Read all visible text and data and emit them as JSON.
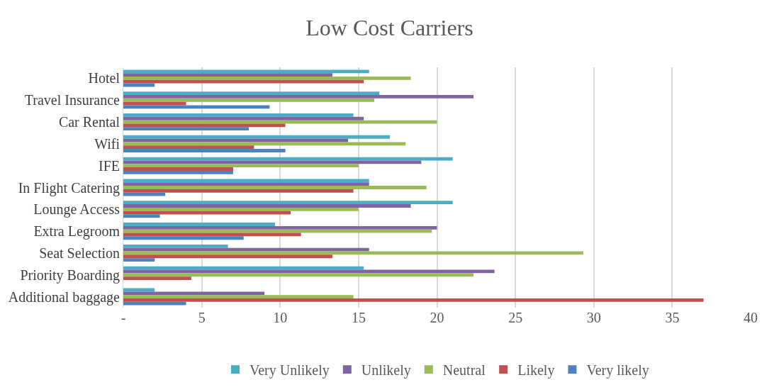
{
  "chart_data": {
    "type": "bar",
    "orientation": "horizontal",
    "title": "Low Cost Carriers",
    "categories": [
      "Hotel",
      "Travel Insurance",
      "Car Rental",
      "Wifi",
      "IFE",
      "In Flight Catering",
      "Lounge Access",
      "Extra Legroom",
      "Seat Selection",
      "Priority Boarding",
      "Additional baggage"
    ],
    "series": [
      {
        "name": "Very Unlikely",
        "color": "#4bacc6",
        "values": [
          15.67,
          16.33,
          14.67,
          17,
          21,
          15.67,
          21,
          9.67,
          6.67,
          15.33,
          2
        ]
      },
      {
        "name": "Unlikely",
        "color": "#8064a2",
        "values": [
          13.33,
          22.33,
          15.33,
          14.33,
          19,
          15.67,
          18.33,
          20,
          15.67,
          23.67,
          9
        ]
      },
      {
        "name": "Neutral",
        "color": "#9bbb59",
        "values": [
          18.33,
          16,
          20,
          18,
          15,
          19.33,
          15,
          19.67,
          29.33,
          22.33,
          14.67
        ]
      },
      {
        "name": "Likely",
        "color": "#c0504d",
        "values": [
          15.33,
          4,
          10.33,
          8.33,
          7,
          14.67,
          10.67,
          11.33,
          13.33,
          4.33,
          37
        ]
      },
      {
        "name": "Very likely",
        "color": "#4f81bd",
        "values": [
          2,
          9.33,
          8,
          10.33,
          7,
          2.67,
          2.33,
          7.67,
          2,
          0,
          4
        ]
      }
    ],
    "xlim": [
      0,
      40
    ],
    "xticks": [
      {
        "value": 0,
        "label": "-"
      },
      5,
      10,
      15,
      20,
      25,
      30,
      35,
      40
    ],
    "grid": "x",
    "legend": "bottom"
  }
}
